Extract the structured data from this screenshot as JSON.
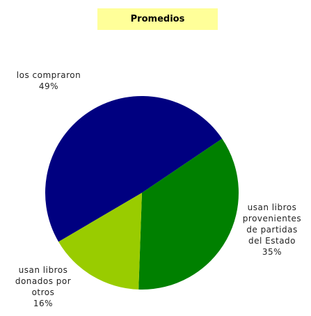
{
  "chart_data": {
    "type": "pie",
    "title": "Promedios",
    "categories": [
      "los compraron",
      "usan libros provenientes de partidas del Estado",
      "usan libros donados por otros"
    ],
    "values": [
      49,
      35,
      16
    ],
    "value_labels": [
      "49%",
      "35%",
      "16%"
    ],
    "colors": [
      "#000080",
      "#008000",
      "#99cc00"
    ]
  }
}
